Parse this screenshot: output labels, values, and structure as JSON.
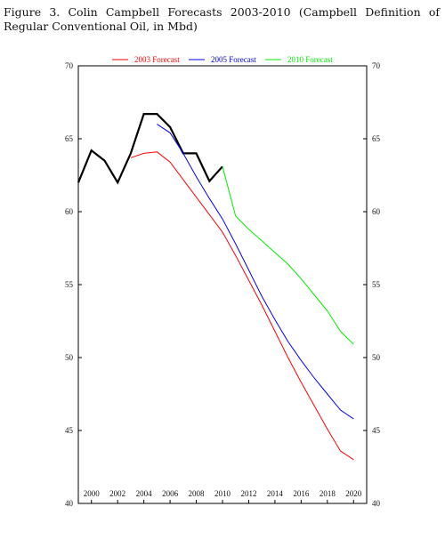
{
  "caption": "Figure 3.  Colin Campbell Forecasts 2003-2010 (Campbell Definition of Regular Conventional Oil, in Mbd)",
  "chart_data": {
    "type": "line",
    "title": "",
    "xlabel": "",
    "ylabel": "",
    "xlim": [
      1999,
      2021
    ],
    "ylim": [
      40,
      70
    ],
    "y_ticks": [
      40,
      45,
      50,
      55,
      60,
      65,
      70
    ],
    "x_ticks": [
      2000,
      2002,
      2004,
      2006,
      2008,
      2010,
      2012,
      2014,
      2016,
      2018,
      2020
    ],
    "grid": false,
    "legend_position": "top",
    "series": [
      {
        "name": "",
        "color": "#000000",
        "x": [
          1999,
          2000,
          2001,
          2002,
          2003,
          2004,
          2005,
          2006,
          2007,
          2008,
          2009,
          2010
        ],
        "y": [
          62.0,
          64.2,
          63.5,
          62.0,
          64.0,
          66.7,
          66.7,
          65.8,
          64.0,
          64.0,
          62.1,
          63.1
        ]
      },
      {
        "name": "2003 Forecast",
        "color": "#ff0000",
        "x": [
          2003,
          2004,
          2005,
          2006,
          2007,
          2008,
          2009,
          2010,
          2011,
          2012,
          2013,
          2014,
          2015,
          2016,
          2017,
          2018,
          2019,
          2020
        ],
        "y": [
          63.7,
          64.0,
          64.1,
          63.4,
          62.2,
          61.0,
          59.8,
          58.6,
          57.0,
          55.3,
          53.6,
          51.8,
          50.0,
          48.3,
          46.7,
          45.1,
          43.6,
          43.0
        ]
      },
      {
        "name": "2005 Forecast",
        "color": "#0000ff",
        "x": [
          2005,
          2006,
          2007,
          2008,
          2009,
          2010,
          2011,
          2012,
          2013,
          2014,
          2015,
          2016,
          2017,
          2018,
          2019,
          2020
        ],
        "y": [
          66.0,
          65.4,
          64.0,
          62.4,
          60.9,
          59.5,
          57.8,
          56.0,
          54.2,
          52.6,
          51.1,
          49.8,
          48.6,
          47.5,
          46.4,
          45.8
        ]
      },
      {
        "name": "2010 Forecast",
        "color": "#00ee00",
        "x": [
          2010,
          2011,
          2012,
          2013,
          2014,
          2015,
          2016,
          2017,
          2018,
          2019,
          2020
        ],
        "y": [
          63.1,
          59.7,
          58.8,
          58.0,
          57.2,
          56.4,
          55.4,
          54.3,
          53.2,
          51.8,
          50.9
        ]
      }
    ]
  }
}
